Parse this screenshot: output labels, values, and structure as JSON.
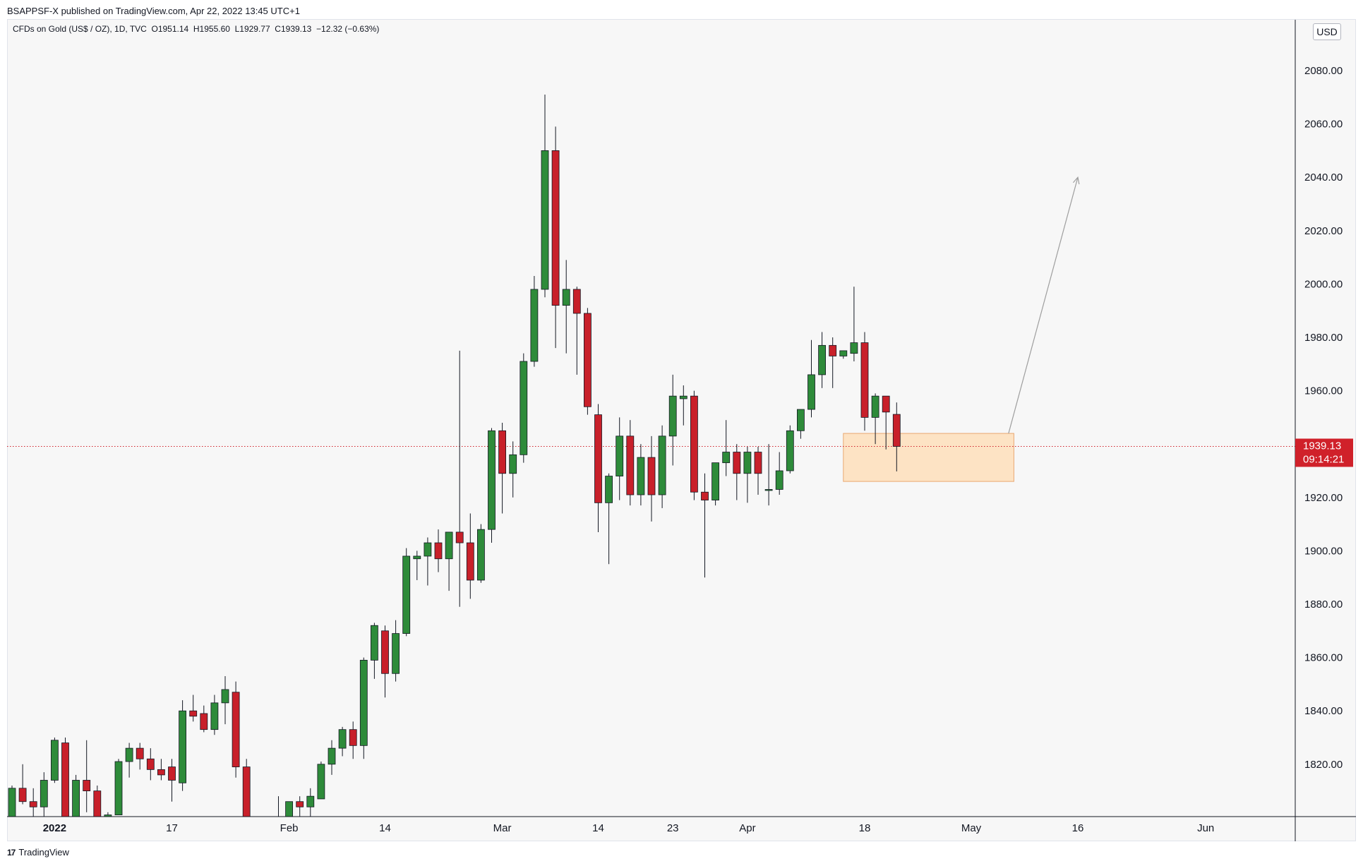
{
  "header": {
    "publisher": "BSAPPSF-X published on TradingView.com, Apr 22, 2022 13:45 UTC+1",
    "symbol": "CFDs on Gold (US$ / OZ), 1D, TVC",
    "ohlc": "O1951.14  H1955.60  L1929.77  C1939.13  −12.32 (−0.63%)",
    "currency": "USD"
  },
  "footer": {
    "brand": "TradingView",
    "logo_mark": "17"
  },
  "colors": {
    "up": "#2e8b3a",
    "down": "#c8202a",
    "zone_fill": "#fde3c4",
    "zone_stroke": "#e9a872",
    "price_line": "#d0212a",
    "arrow": "#9e9e9e"
  },
  "chart_data": {
    "type": "candlestick",
    "title": "CFDs on Gold (US$ / OZ), 1D, TVC",
    "ylim": [
      1800,
      2088
    ],
    "y_ticks": [
      1820,
      1840,
      1860,
      1880,
      1900,
      1920,
      1940,
      1960,
      1980,
      2000,
      2020,
      2040,
      2060,
      2080
    ],
    "x_ticks": [
      {
        "label": "2022",
        "index": 4,
        "bold": true
      },
      {
        "label": "17",
        "index": 15
      },
      {
        "label": "Feb",
        "index": 26
      },
      {
        "label": "14",
        "index": 35
      },
      {
        "label": "Mar",
        "index": 46
      },
      {
        "label": "14",
        "index": 55
      },
      {
        "label": "23",
        "index": 62
      },
      {
        "label": "Apr",
        "index": 69
      },
      {
        "label": "18",
        "index": 80
      },
      {
        "label": "May",
        "index": 90
      },
      {
        "label": "16",
        "index": 100
      },
      {
        "label": "Jun",
        "index": 112
      }
    ],
    "last_price": {
      "value": 1939.13,
      "countdown": "09:14:21"
    },
    "candles": [
      {
        "o": 1800,
        "h": 1812,
        "l": 1800,
        "c": 1811
      },
      {
        "o": 1811,
        "h": 1820,
        "l": 1805,
        "c": 1806
      },
      {
        "o": 1806,
        "h": 1811,
        "l": 1800,
        "c": 1804
      },
      {
        "o": 1804,
        "h": 1817,
        "l": 1800,
        "c": 1814
      },
      {
        "o": 1814,
        "h": 1830,
        "l": 1813,
        "c": 1829
      },
      {
        "o": 1828,
        "h": 1830,
        "l": 1800,
        "c": 1800
      },
      {
        "o": 1800,
        "h": 1816,
        "l": 1800,
        "c": 1814
      },
      {
        "o": 1814,
        "h": 1829,
        "l": 1802,
        "c": 1810
      },
      {
        "o": 1810,
        "h": 1812,
        "l": 1800,
        "c": 1800
      },
      {
        "o": 1800,
        "h": 1802,
        "l": 1800,
        "c": 1801
      },
      {
        "o": 1801,
        "h": 1822,
        "l": 1801,
        "c": 1821
      },
      {
        "o": 1821,
        "h": 1828,
        "l": 1815,
        "c": 1826
      },
      {
        "o": 1826,
        "h": 1828,
        "l": 1818,
        "c": 1822
      },
      {
        "o": 1822,
        "h": 1826,
        "l": 1814,
        "c": 1818
      },
      {
        "o": 1818,
        "h": 1822,
        "l": 1814,
        "c": 1816
      },
      {
        "o": 1819,
        "h": 1822,
        "l": 1806,
        "c": 1814
      },
      {
        "o": 1813,
        "h": 1844,
        "l": 1810,
        "c": 1840
      },
      {
        "o": 1840,
        "h": 1846,
        "l": 1836,
        "c": 1838
      },
      {
        "o": 1839,
        "h": 1842,
        "l": 1832,
        "c": 1833
      },
      {
        "o": 1833,
        "h": 1846,
        "l": 1831,
        "c": 1843
      },
      {
        "o": 1843,
        "h": 1853,
        "l": 1835,
        "c": 1848
      },
      {
        "o": 1847,
        "h": 1851,
        "l": 1815,
        "c": 1819
      },
      {
        "o": 1819,
        "h": 1822,
        "l": 1800,
        "c": 1800
      },
      {
        "o": 1800,
        "h": 1800,
        "l": 1800,
        "c": 1800
      },
      {
        "o": 1800,
        "h": 1800,
        "l": 1800,
        "c": 1800
      },
      {
        "o": 1800,
        "h": 1808,
        "l": 1800,
        "c": 1800
      },
      {
        "o": 1800,
        "h": 1806,
        "l": 1800,
        "c": 1806
      },
      {
        "o": 1806,
        "h": 1808,
        "l": 1800,
        "c": 1804
      },
      {
        "o": 1804,
        "h": 1811,
        "l": 1800,
        "c": 1808
      },
      {
        "o": 1807,
        "h": 1821,
        "l": 1807,
        "c": 1820
      },
      {
        "o": 1820,
        "h": 1829,
        "l": 1816,
        "c": 1826
      },
      {
        "o": 1826,
        "h": 1834,
        "l": 1823,
        "c": 1833
      },
      {
        "o": 1833,
        "h": 1836,
        "l": 1822,
        "c": 1827
      },
      {
        "o": 1827,
        "h": 1860,
        "l": 1822,
        "c": 1859
      },
      {
        "o": 1859,
        "h": 1873,
        "l": 1852,
        "c": 1872
      },
      {
        "o": 1870,
        "h": 1872,
        "l": 1845,
        "c": 1854
      },
      {
        "o": 1854,
        "h": 1874,
        "l": 1851,
        "c": 1869
      },
      {
        "o": 1869,
        "h": 1901,
        "l": 1868,
        "c": 1898
      },
      {
        "o": 1897,
        "h": 1900,
        "l": 1889,
        "c": 1898
      },
      {
        "o": 1898,
        "h": 1905,
        "l": 1887,
        "c": 1903
      },
      {
        "o": 1903,
        "h": 1908,
        "l": 1892,
        "c": 1897
      },
      {
        "o": 1897,
        "h": 1907,
        "l": 1885,
        "c": 1907
      },
      {
        "o": 1907,
        "h": 1975,
        "l": 1879,
        "c": 1903
      },
      {
        "o": 1903,
        "h": 1914,
        "l": 1882,
        "c": 1889
      },
      {
        "o": 1889,
        "h": 1910,
        "l": 1888,
        "c": 1908
      },
      {
        "o": 1908,
        "h": 1946,
        "l": 1903,
        "c": 1945
      },
      {
        "o": 1945,
        "h": 1948,
        "l": 1914,
        "c": 1929
      },
      {
        "o": 1929,
        "h": 1941,
        "l": 1920,
        "c": 1936
      },
      {
        "o": 1936,
        "h": 1974,
        "l": 1933,
        "c": 1971
      },
      {
        "o": 1971,
        "h": 2003,
        "l": 1969,
        "c": 1998
      },
      {
        "o": 1998,
        "h": 2071,
        "l": 1995,
        "c": 2050
      },
      {
        "o": 2050,
        "h": 2059,
        "l": 1976,
        "c": 1992
      },
      {
        "o": 1992,
        "h": 2009,
        "l": 1974,
        "c": 1998
      },
      {
        "o": 1998,
        "h": 1999,
        "l": 1966,
        "c": 1989
      },
      {
        "o": 1989,
        "h": 1991,
        "l": 1951,
        "c": 1954
      },
      {
        "o": 1951,
        "h": 1955,
        "l": 1907,
        "c": 1918
      },
      {
        "o": 1918,
        "h": 1929,
        "l": 1895,
        "c": 1928
      },
      {
        "o": 1928,
        "h": 1950,
        "l": 1919,
        "c": 1943
      },
      {
        "o": 1943,
        "h": 1949,
        "l": 1917,
        "c": 1921
      },
      {
        "o": 1921,
        "h": 1940,
        "l": 1917,
        "c": 1935
      },
      {
        "o": 1935,
        "h": 1943,
        "l": 1911,
        "c": 1921
      },
      {
        "o": 1921,
        "h": 1947,
        "l": 1916,
        "c": 1943
      },
      {
        "o": 1943,
        "h": 1966,
        "l": 1932,
        "c": 1958
      },
      {
        "o": 1957,
        "h": 1962,
        "l": 1947,
        "c": 1958
      },
      {
        "o": 1958,
        "h": 1960,
        "l": 1919,
        "c": 1922
      },
      {
        "o": 1922,
        "h": 1929,
        "l": 1890,
        "c": 1919
      },
      {
        "o": 1919,
        "h": 1932,
        "l": 1917,
        "c": 1933
      },
      {
        "o": 1933,
        "h": 1949,
        "l": 1928,
        "c": 1937
      },
      {
        "o": 1937,
        "h": 1940,
        "l": 1919,
        "c": 1929
      },
      {
        "o": 1929,
        "h": 1939,
        "l": 1918,
        "c": 1937
      },
      {
        "o": 1937,
        "h": 1939,
        "l": 1921,
        "c": 1929
      },
      {
        "o": 1923,
        "h": 1940,
        "l": 1917,
        "c": 1923
      },
      {
        "o": 1923,
        "h": 1937,
        "l": 1921,
        "c": 1930
      },
      {
        "o": 1930,
        "h": 1947,
        "l": 1929,
        "c": 1945
      },
      {
        "o": 1945,
        "h": 1952,
        "l": 1942,
        "c": 1953
      },
      {
        "o": 1953,
        "h": 1979,
        "l": 1950,
        "c": 1966
      },
      {
        "o": 1966,
        "h": 1982,
        "l": 1961,
        "c": 1977
      },
      {
        "o": 1977,
        "h": 1980,
        "l": 1961,
        "c": 1973
      },
      {
        "o": 1973,
        "h": 1974,
        "l": 1972,
        "c": 1975
      },
      {
        "o": 1974,
        "h": 1999,
        "l": 1971,
        "c": 1978
      },
      {
        "o": 1978,
        "h": 1982,
        "l": 1945,
        "c": 1950
      },
      {
        "o": 1950,
        "h": 1959,
        "l": 1940,
        "c": 1958
      },
      {
        "o": 1958,
        "h": 1958,
        "l": 1938,
        "c": 1952
      },
      {
        "o": 1951.14,
        "h": 1955.6,
        "l": 1929.77,
        "c": 1939.13
      }
    ],
    "annotations": [
      {
        "type": "rectangle",
        "from_index": 78,
        "to_index": 94,
        "y_low": 1926,
        "y_high": 1944
      },
      {
        "type": "arrow",
        "from_index": 93.5,
        "from_y": 1944,
        "to_index": 100,
        "to_y": 2040
      }
    ]
  }
}
